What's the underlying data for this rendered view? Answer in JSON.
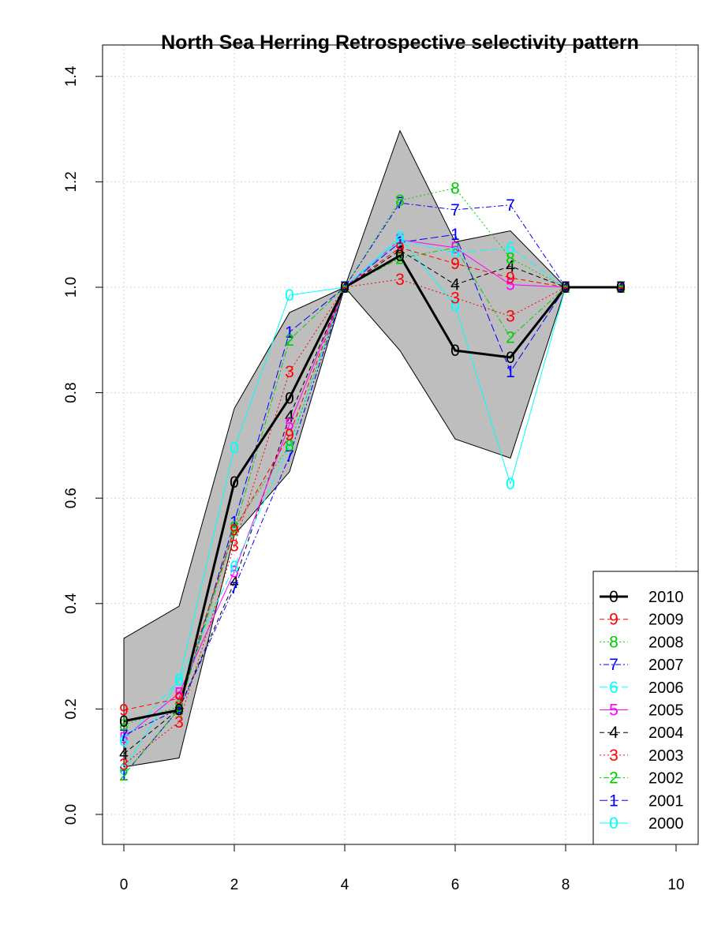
{
  "chart_data": {
    "type": "line",
    "title": "North Sea Herring Retrospective selectivity pattern",
    "xlabel": "",
    "ylabel": "",
    "xlim": [
      0,
      10
    ],
    "ylim": [
      -0.05,
      1.45
    ],
    "x_ticks": [
      "0",
      "2",
      "4",
      "6",
      "8",
      "10"
    ],
    "y_ticks": [
      "0.0",
      "0.2",
      "0.4",
      "0.6",
      "0.8",
      "1.0",
      "1.2",
      "1.4"
    ],
    "grid": true,
    "legend_position": "bottom-right",
    "band": {
      "x": [
        0,
        1,
        2,
        3,
        4,
        5,
        6,
        7,
        8
      ],
      "upper": [
        0.334,
        0.395,
        0.77,
        0.952,
        1.0,
        1.297,
        1.086,
        1.107,
        1.0
      ],
      "lower": [
        0.09,
        0.107,
        0.53,
        0.65,
        1.0,
        0.88,
        0.712,
        0.676,
        1.0
      ],
      "color": "#bebebe"
    },
    "series": [
      {
        "name": "2010",
        "marker": "0",
        "color": "#000000",
        "dash": "solid",
        "width": 3,
        "x": [
          0,
          1,
          2,
          3,
          4,
          5,
          6,
          7,
          8,
          9
        ],
        "values": [
          0.177,
          0.198,
          0.63,
          0.79,
          1.0,
          1.06,
          0.88,
          0.867,
          1.0,
          1.0
        ]
      },
      {
        "name": "2009",
        "marker": "9",
        "color": "#ff0000",
        "dash": "dashed",
        "width": 1,
        "x": [
          0,
          1,
          2,
          3,
          4,
          5,
          6,
          7,
          8,
          9
        ],
        "values": [
          0.198,
          0.22,
          0.54,
          0.72,
          1.0,
          1.075,
          1.045,
          1.018,
          1.0,
          1.0
        ]
      },
      {
        "name": "2008",
        "marker": "8",
        "color": "#00cd00",
        "dash": "dotted",
        "width": 1,
        "x": [
          0,
          1,
          2,
          3,
          4,
          5,
          6,
          7,
          8,
          9
        ],
        "values": [
          0.17,
          0.205,
          0.545,
          0.7,
          1.0,
          1.165,
          1.188,
          1.055,
          1.0,
          1.0
        ]
      },
      {
        "name": "2007",
        "marker": "7",
        "color": "#0000ff",
        "dash": "dotdash",
        "width": 1,
        "x": [
          0,
          1,
          2,
          3,
          4,
          5,
          6,
          7,
          8,
          9
        ],
        "values": [
          0.15,
          0.2,
          0.43,
          0.68,
          1.0,
          1.16,
          1.147,
          1.156,
          1.0,
          1.0
        ]
      },
      {
        "name": "2006",
        "marker": "6",
        "color": "#00ffff",
        "dash": "longdash",
        "width": 1,
        "x": [
          0,
          1,
          2,
          3,
          4,
          5,
          6,
          7,
          8,
          9
        ],
        "values": [
          0.14,
          0.255,
          0.47,
          0.7,
          1.0,
          1.09,
          1.065,
          1.075,
          1.0,
          1.0
        ]
      },
      {
        "name": "2005",
        "marker": "5",
        "color": "#ff00ff",
        "dash": "solid",
        "width": 1,
        "x": [
          0,
          1,
          2,
          3,
          4,
          5,
          6,
          7,
          8,
          9
        ],
        "values": [
          0.145,
          0.23,
          0.46,
          0.74,
          1.0,
          1.09,
          1.075,
          1.005,
          1.0,
          1.0
        ]
      },
      {
        "name": "2004",
        "marker": "4",
        "color": "#000000",
        "dash": "dashed",
        "width": 1,
        "x": [
          0,
          1,
          2,
          3,
          4,
          5,
          6,
          7,
          8,
          9
        ],
        "values": [
          0.115,
          0.2,
          0.44,
          0.755,
          1.0,
          1.07,
          1.005,
          1.04,
          1.0,
          1.0
        ]
      },
      {
        "name": "2003",
        "marker": "3",
        "color": "#ff0000",
        "dash": "dotted",
        "width": 1,
        "x": [
          0,
          1,
          2,
          3,
          4,
          5,
          6,
          7,
          8,
          9
        ],
        "values": [
          0.095,
          0.175,
          0.51,
          0.84,
          1.0,
          1.015,
          0.98,
          0.945,
          1.0,
          1.0
        ]
      },
      {
        "name": "2002",
        "marker": "2",
        "color": "#00cd00",
        "dash": "dotdash",
        "width": 1,
        "x": [
          0,
          1,
          2,
          3,
          4,
          5,
          6,
          7,
          8,
          9
        ],
        "values": [
          0.075,
          0.2,
          0.54,
          0.9,
          1.0,
          1.055,
          1.075,
          0.905,
          1.0,
          1.0
        ]
      },
      {
        "name": "2001",
        "marker": "1",
        "color": "#0000ff",
        "dash": "longdash",
        "width": 1,
        "x": [
          0,
          1,
          2,
          3,
          4,
          5,
          6,
          7,
          8,
          9
        ],
        "values": [
          0.075,
          0.2,
          0.555,
          0.915,
          1.0,
          1.085,
          1.1,
          0.84,
          1.0,
          1.0
        ]
      },
      {
        "name": "2000",
        "marker": "0",
        "color": "#00ffff",
        "dash": "solid",
        "width": 1,
        "x": [
          0,
          1,
          2,
          3,
          4,
          5,
          6,
          7,
          8,
          9
        ],
        "values": [
          0.085,
          0.255,
          0.695,
          0.985,
          1.0,
          1.095,
          0.965,
          0.627,
          1.0,
          1.0
        ]
      }
    ]
  }
}
